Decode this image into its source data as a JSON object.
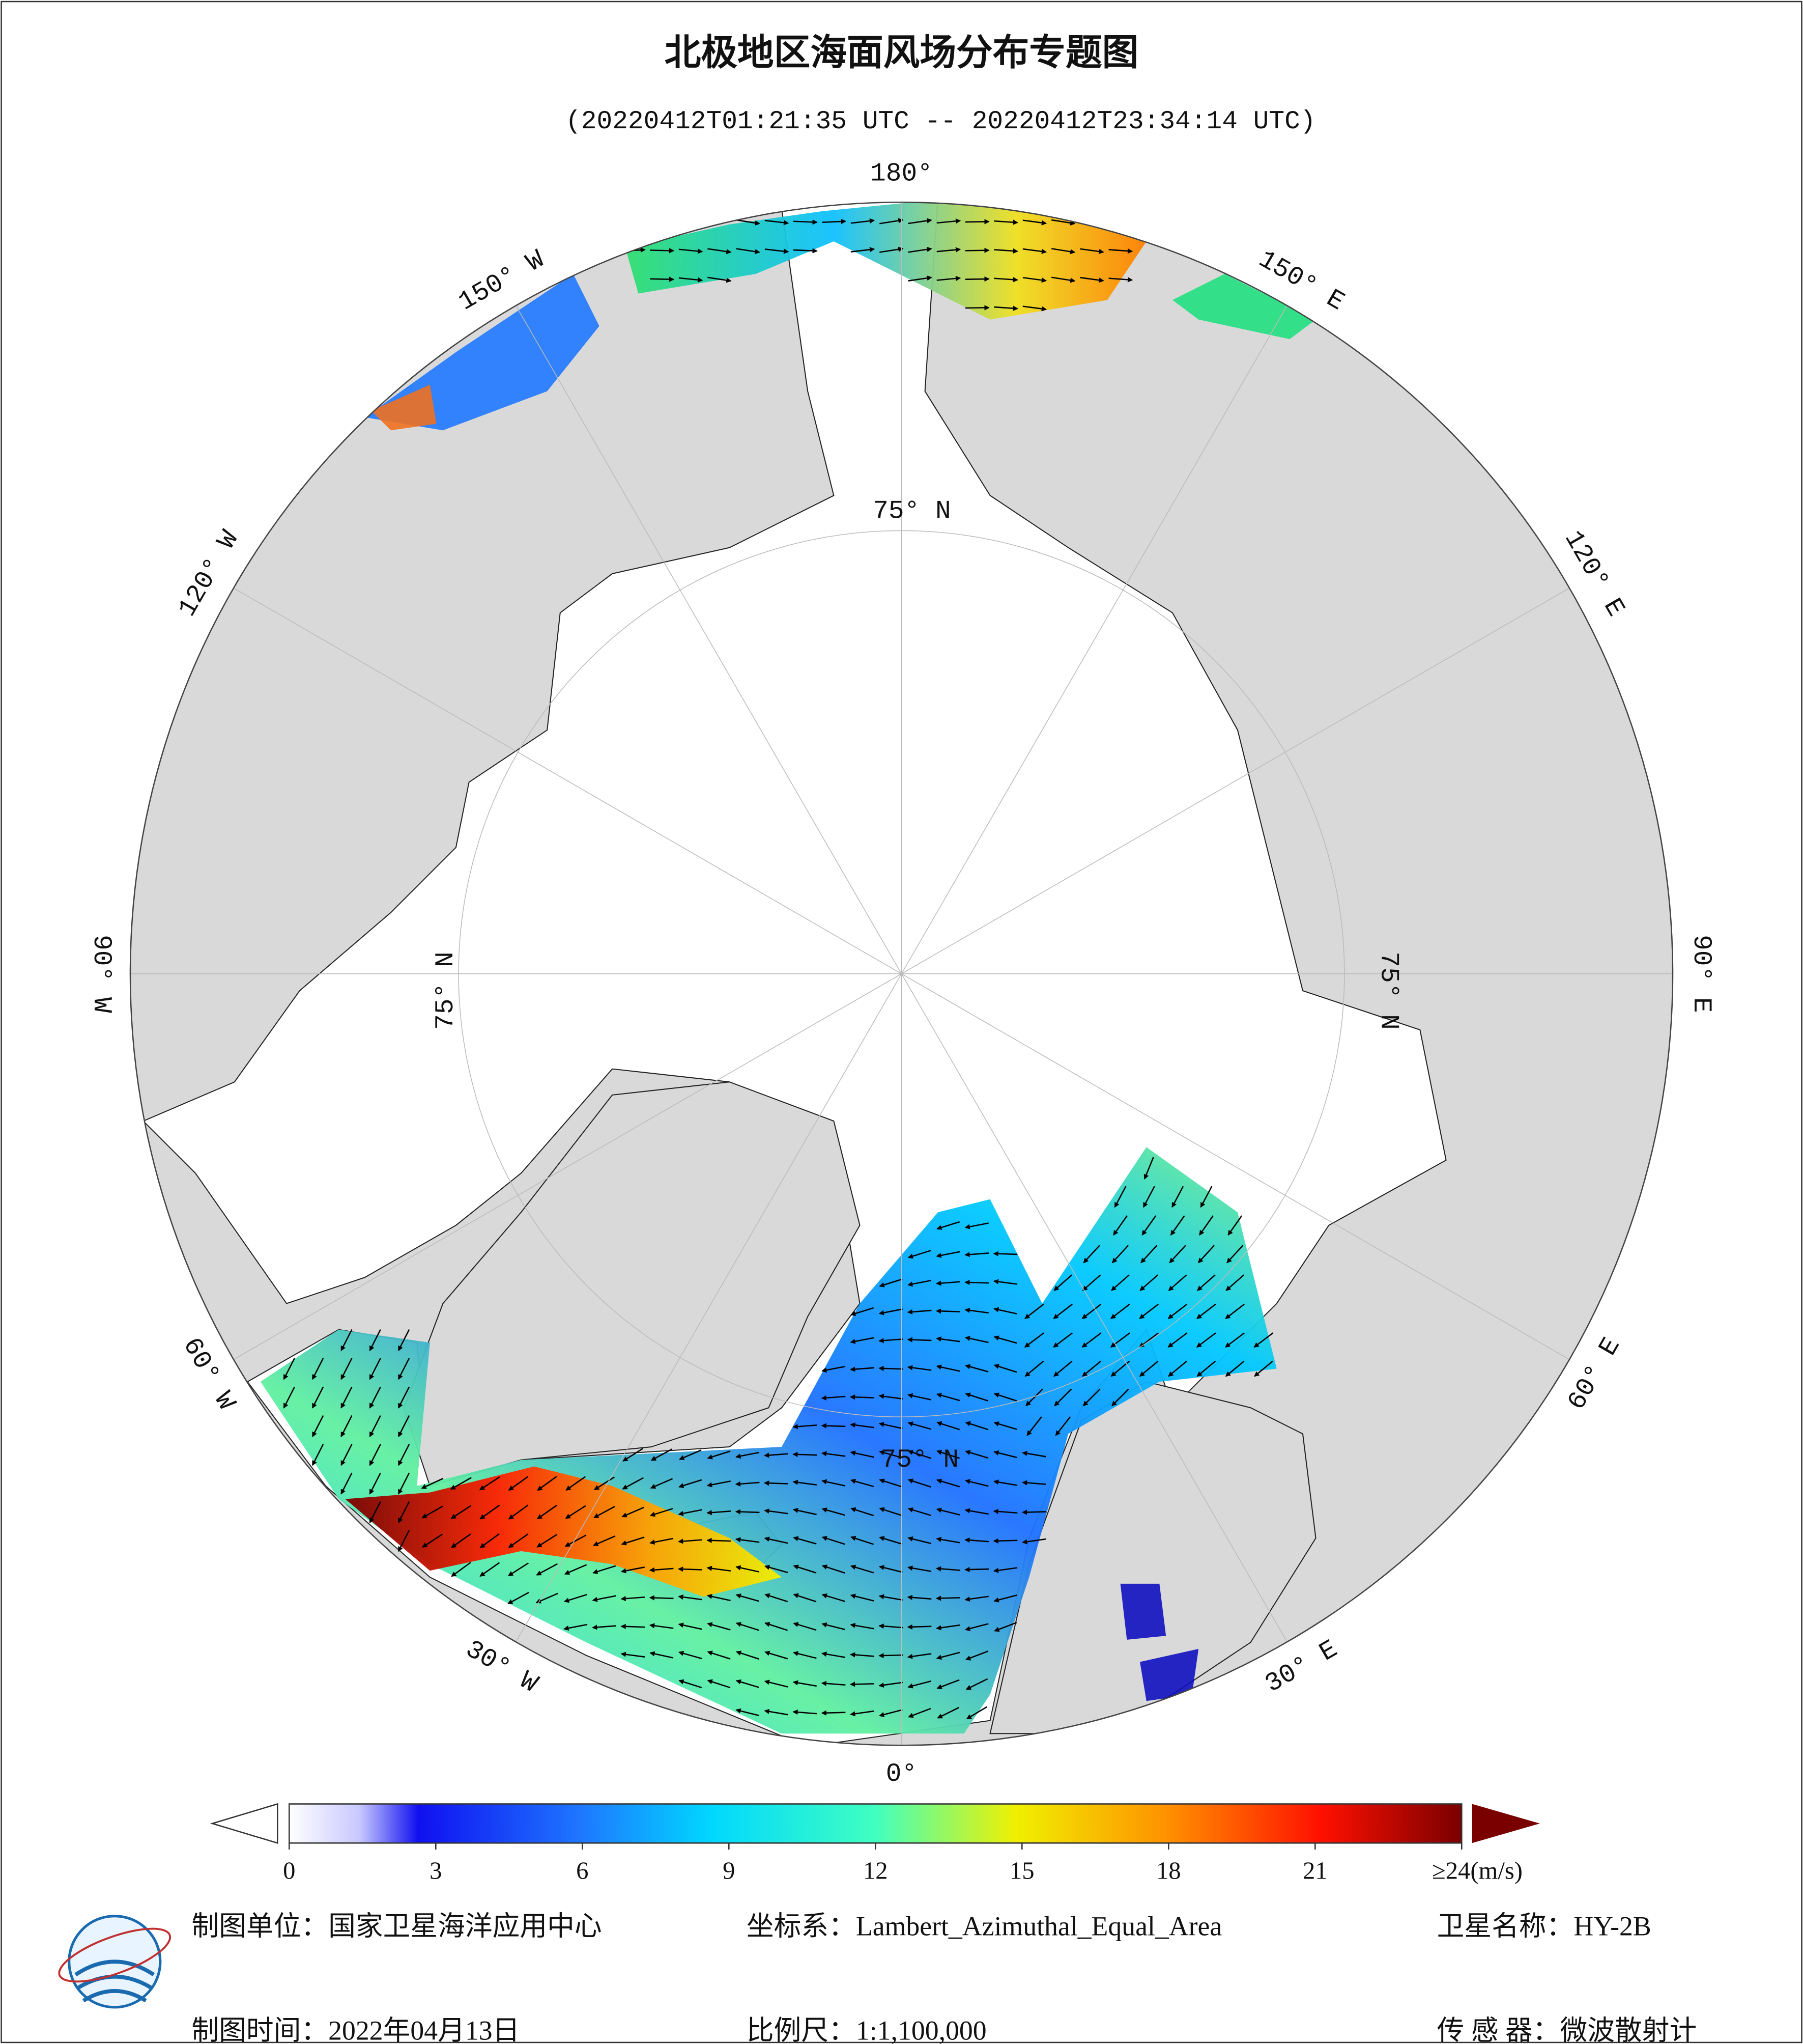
{
  "header": {
    "title": "北极地区海面风场分布专题图",
    "subtitle": "(20220412T01:21:35 UTC -- 20220412T23:34:14 UTC)"
  },
  "graticule": {
    "meridians": [
      {
        "value": 0,
        "label": "0°"
      },
      {
        "value": 30,
        "label": "30° E"
      },
      {
        "value": 60,
        "label": "60° E"
      },
      {
        "value": 90,
        "label": "90° E"
      },
      {
        "value": 120,
        "label": "120° E"
      },
      {
        "value": 150,
        "label": "150° E"
      },
      {
        "value": 180,
        "label": "180°"
      },
      {
        "value": -150,
        "label": "150° W"
      },
      {
        "value": -120,
        "label": "120° W"
      },
      {
        "value": -90,
        "label": "90° W"
      },
      {
        "value": -60,
        "label": "60° W"
      },
      {
        "value": -30,
        "label": "30° W"
      }
    ],
    "parallel": {
      "value": 75,
      "label": "75° N"
    }
  },
  "colorbar": {
    "ticks": [
      0,
      3,
      6,
      9,
      12,
      15,
      18,
      21
    ],
    "range": [
      0,
      24
    ],
    "max_label": "≥24(m/s)"
  },
  "footer": {
    "unit": "制图单位：国家卫星海洋应用中心",
    "projection": "坐标系：Lambert_Azimuthal_Equal_Area",
    "satellite": "卫星名称：HY-2B",
    "date": "制图时间：2022年04月13日",
    "scale": "比例尺：1:1,100,000",
    "sensor": "传 感 器：微波散射计"
  }
}
